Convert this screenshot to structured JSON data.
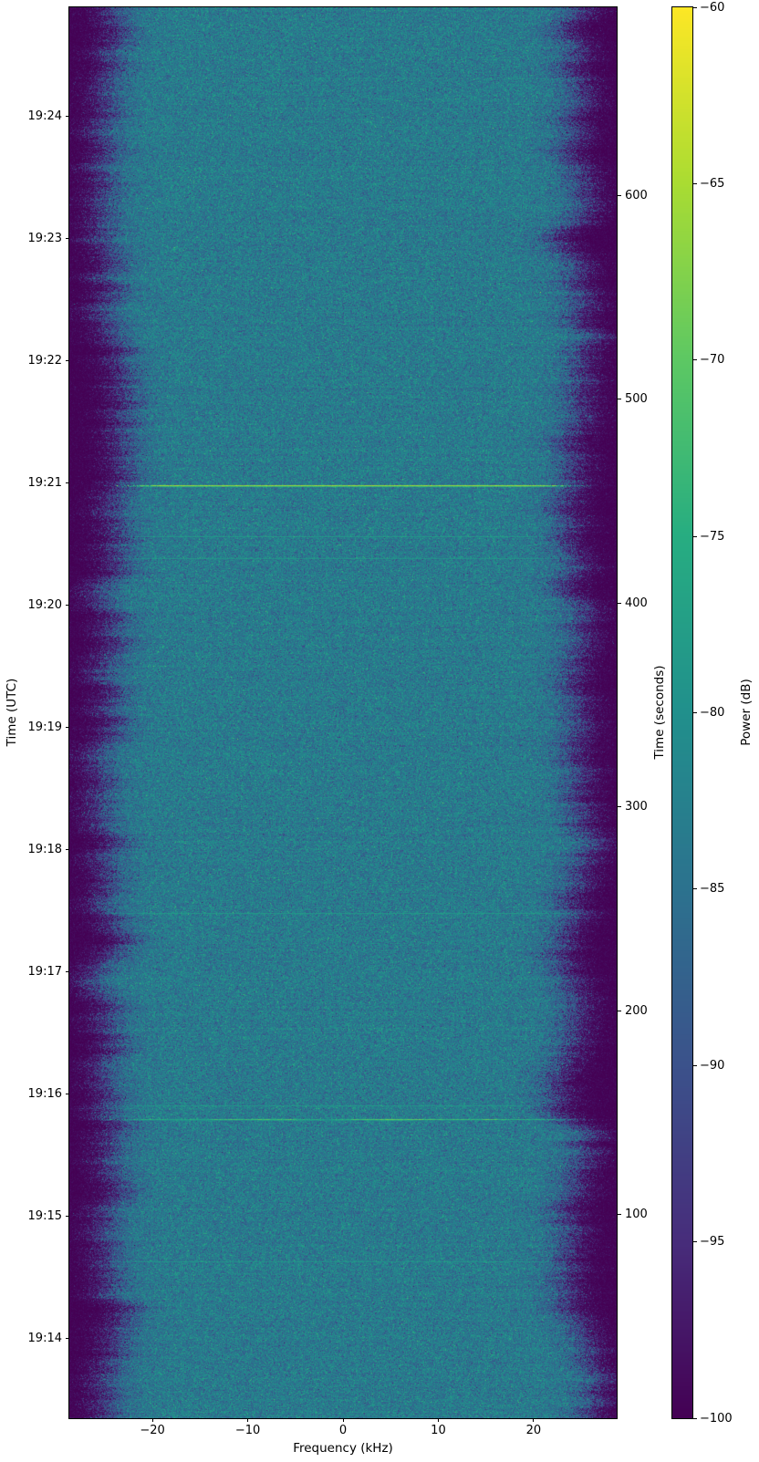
{
  "chart_data": {
    "type": "heatmap",
    "subtype": "radio-spectrogram-waterfall",
    "xlabel": "Frequency (kHz)",
    "x_range_khz": [
      -28.72,
      28.72
    ],
    "x_ticks": [
      {
        "label": "−20",
        "khz": -20
      },
      {
        "label": "−10",
        "khz": -10
      },
      {
        "label": "0",
        "khz": 0
      },
      {
        "label": "10",
        "khz": 10
      },
      {
        "label": "20",
        "khz": 20
      }
    ],
    "ylabel_left": "Time (UTC)",
    "y_ticks_left": [
      {
        "label": "19:14",
        "seconds": 39
      },
      {
        "label": "19:15",
        "seconds": 99
      },
      {
        "label": "19:16",
        "seconds": 159
      },
      {
        "label": "19:17",
        "seconds": 219
      },
      {
        "label": "19:18",
        "seconds": 279
      },
      {
        "label": "19:19",
        "seconds": 339
      },
      {
        "label": "19:20",
        "seconds": 399
      },
      {
        "label": "19:21",
        "seconds": 459
      },
      {
        "label": "19:22",
        "seconds": 519
      },
      {
        "label": "19:23",
        "seconds": 579
      },
      {
        "label": "19:24",
        "seconds": 639
      }
    ],
    "ylabel_right": "Time (seconds)",
    "y_ticks_right": [
      100,
      200,
      300,
      400,
      500,
      600
    ],
    "y_range_seconds": [
      0,
      692.4
    ],
    "colorbar": {
      "label": "Power (dB)",
      "range_db": [
        -100,
        -60
      ],
      "ticks": [
        {
          "label": "−60",
          "db": -60
        },
        {
          "label": "−65",
          "db": -65
        },
        {
          "label": "−70",
          "db": -70
        },
        {
          "label": "−75",
          "db": -75
        },
        {
          "label": "−80",
          "db": -80
        },
        {
          "label": "−85",
          "db": -85
        },
        {
          "label": "−90",
          "db": -90
        },
        {
          "label": "−95",
          "db": -95
        },
        {
          "label": "−100",
          "db": -100
        }
      ]
    },
    "signal_model": {
      "noise_floor_db": -100,
      "passband_power_db": -83.5,
      "passband_edge_khz": 24.2,
      "edge_rolloff_khz": 0.9,
      "edge_speckle_khz": 1.1,
      "edge_wander_khz": 0.8,
      "pixel_noise_db": 3.2,
      "row_noise_db": 0.4
    },
    "events": [
      {
        "seconds": 458,
        "power_db": -66,
        "rows": 2
      },
      {
        "seconds": 433,
        "power_db": -78.5,
        "rows": 1
      },
      {
        "seconds": 422,
        "power_db": -79,
        "rows": 1
      },
      {
        "seconds": 248,
        "power_db": -78.5,
        "rows": 1
      },
      {
        "seconds": 153.5,
        "power_db": -79,
        "rows": 1
      },
      {
        "seconds": 147,
        "power_db": -73.5,
        "rows": 2,
        "variation_db": 2.5
      },
      {
        "seconds": 77,
        "power_db": -79.5,
        "rows": 1
      }
    ],
    "colormap": {
      "name": "viridis",
      "stops": [
        {
          "t": 0.0,
          "color": "#440154"
        },
        {
          "t": 0.125,
          "color": "#472d7b"
        },
        {
          "t": 0.25,
          "color": "#3b528b"
        },
        {
          "t": 0.375,
          "color": "#2c728e"
        },
        {
          "t": 0.5,
          "color": "#21908c"
        },
        {
          "t": 0.625,
          "color": "#27ad81"
        },
        {
          "t": 0.75,
          "color": "#5dc863"
        },
        {
          "t": 0.875,
          "color": "#aadc32"
        },
        {
          "t": 1.0,
          "color": "#fde725"
        }
      ]
    },
    "layout": {
      "grid": false,
      "legend": "none",
      "colorbar_position": "right"
    }
  }
}
